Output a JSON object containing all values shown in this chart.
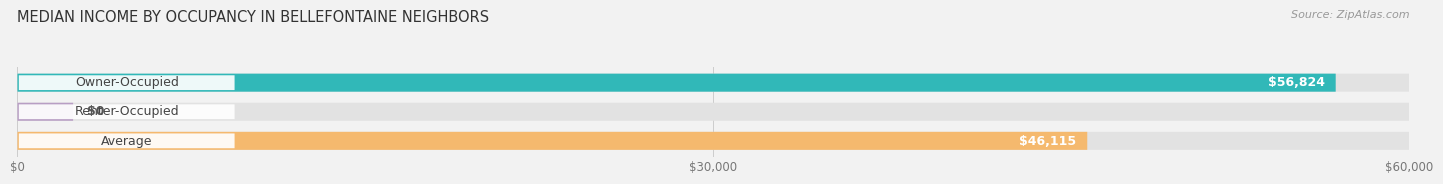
{
  "title": "MEDIAN INCOME BY OCCUPANCY IN BELLEFONTAINE NEIGHBORS",
  "source": "Source: ZipAtlas.com",
  "categories": [
    "Owner-Occupied",
    "Renter-Occupied",
    "Average"
  ],
  "values": [
    56824,
    0,
    46115
  ],
  "value_labels": [
    "$56,824",
    "$0",
    "$46,115"
  ],
  "bar_colors": [
    "#31b8b8",
    "#b89ec4",
    "#f5b96e"
  ],
  "xlim": [
    0,
    60000
  ],
  "xtick_values": [
    0,
    30000,
    60000
  ],
  "xtick_labels": [
    "$0",
    "$30,000",
    "$60,000"
  ],
  "background_color": "#f2f2f2",
  "bar_bg_color": "#e2e2e2",
  "title_fontsize": 10.5,
  "source_fontsize": 8,
  "label_fontsize": 9,
  "tick_fontsize": 8.5,
  "bar_height": 0.62,
  "renter_small_val": 2400
}
